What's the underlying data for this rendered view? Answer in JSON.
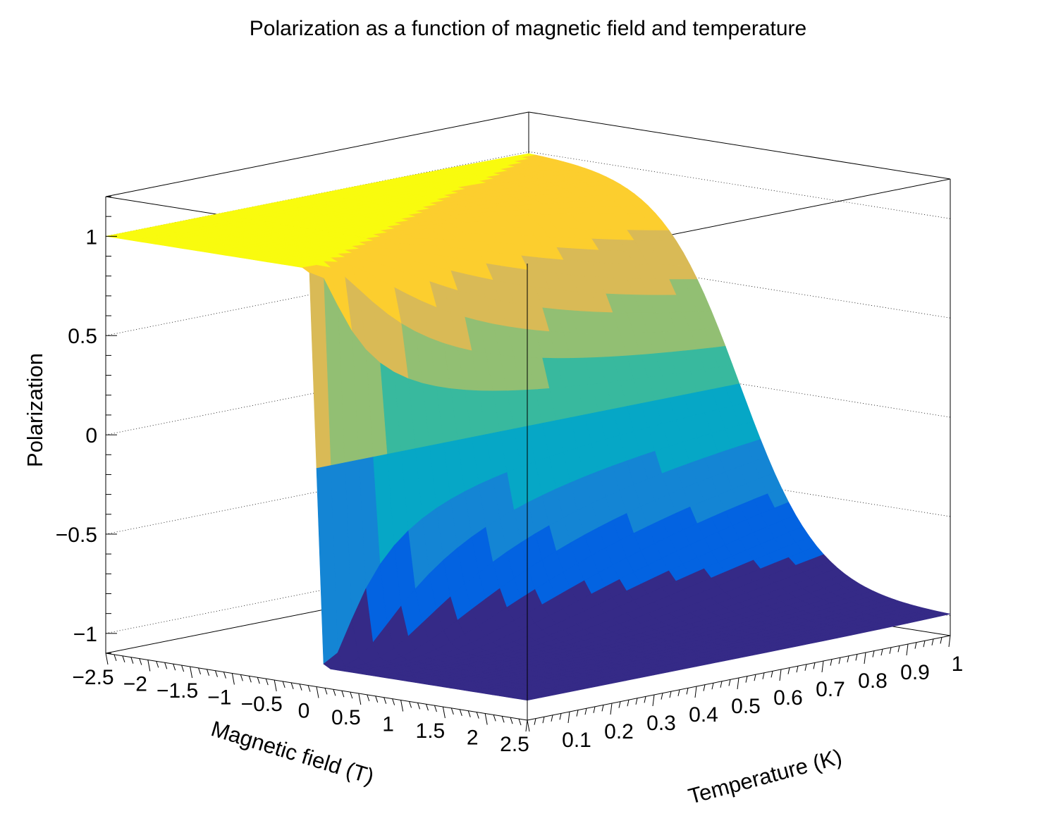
{
  "chart_data": {
    "type": "surface",
    "title": "Polarization as a function of magnetic field and temperature",
    "x_axis": {
      "label": "Magnetic field (T)",
      "range": [
        -2.5,
        2.5
      ],
      "ticks": [
        "−2.5",
        "−2",
        "−1.5",
        "−1",
        "−0.5",
        "0",
        "0.5",
        "1",
        "1.5",
        "2",
        "2.5"
      ]
    },
    "y_axis": {
      "label": "Temperature (K)",
      "range": [
        0,
        1
      ],
      "ticks": [
        "0.1",
        "0.2",
        "0.3",
        "0.4",
        "0.5",
        "0.6",
        "0.7",
        "0.8",
        "0.9",
        "1"
      ]
    },
    "z_axis": {
      "label": "Polarization",
      "range": [
        -1.1,
        1.2
      ],
      "ticks": [
        "−1",
        "−0.5",
        "0",
        "0.5",
        "1"
      ]
    },
    "grid": true,
    "palette": [
      "#352a87",
      "#0363e1",
      "#1485d4",
      "#06a7c6",
      "#38b99e",
      "#92bf73",
      "#d9ba56",
      "#fcce2e",
      "#f9fb0e"
    ],
    "surface_edges": [
      {
        "edge": "B = -2.5 T",
        "temperature": [
          0.01,
          0.1,
          0.2,
          0.3,
          0.4,
          0.5,
          0.6,
          0.7,
          0.8,
          0.9,
          1.0
        ],
        "polarization": [
          1.0,
          1.0,
          1.0,
          1.0,
          1.0,
          1.0,
          0.99,
          0.99,
          0.98,
          0.98,
          0.97
        ]
      },
      {
        "edge": "B = 2.5 T",
        "temperature": [
          0.01,
          0.1,
          0.2,
          0.3,
          0.4,
          0.5,
          0.6,
          0.7,
          0.8,
          0.9,
          1.0
        ],
        "polarization": [
          -1.0,
          -1.0,
          -1.0,
          -1.0,
          -1.0,
          -1.0,
          -0.99,
          -0.99,
          -0.98,
          -0.98,
          -0.97
        ]
      },
      {
        "edge": "T = 0.01 K",
        "field": [
          -2.5,
          -0.5,
          -0.25,
          0,
          0.25,
          0.5,
          2.5
        ],
        "polarization": [
          1.0,
          1.0,
          0.72,
          0,
          -0.72,
          -1.0,
          -1.0
        ]
      },
      {
        "edge": "T = 1 K",
        "field": [
          -2.5,
          -1.5,
          -1.0,
          -0.5,
          0,
          0.5,
          1.0,
          1.5,
          2.5
        ],
        "polarization": [
          0.97,
          0.88,
          0.73,
          0.42,
          0,
          -0.42,
          -0.73,
          -0.88,
          -0.97
        ]
      }
    ]
  }
}
